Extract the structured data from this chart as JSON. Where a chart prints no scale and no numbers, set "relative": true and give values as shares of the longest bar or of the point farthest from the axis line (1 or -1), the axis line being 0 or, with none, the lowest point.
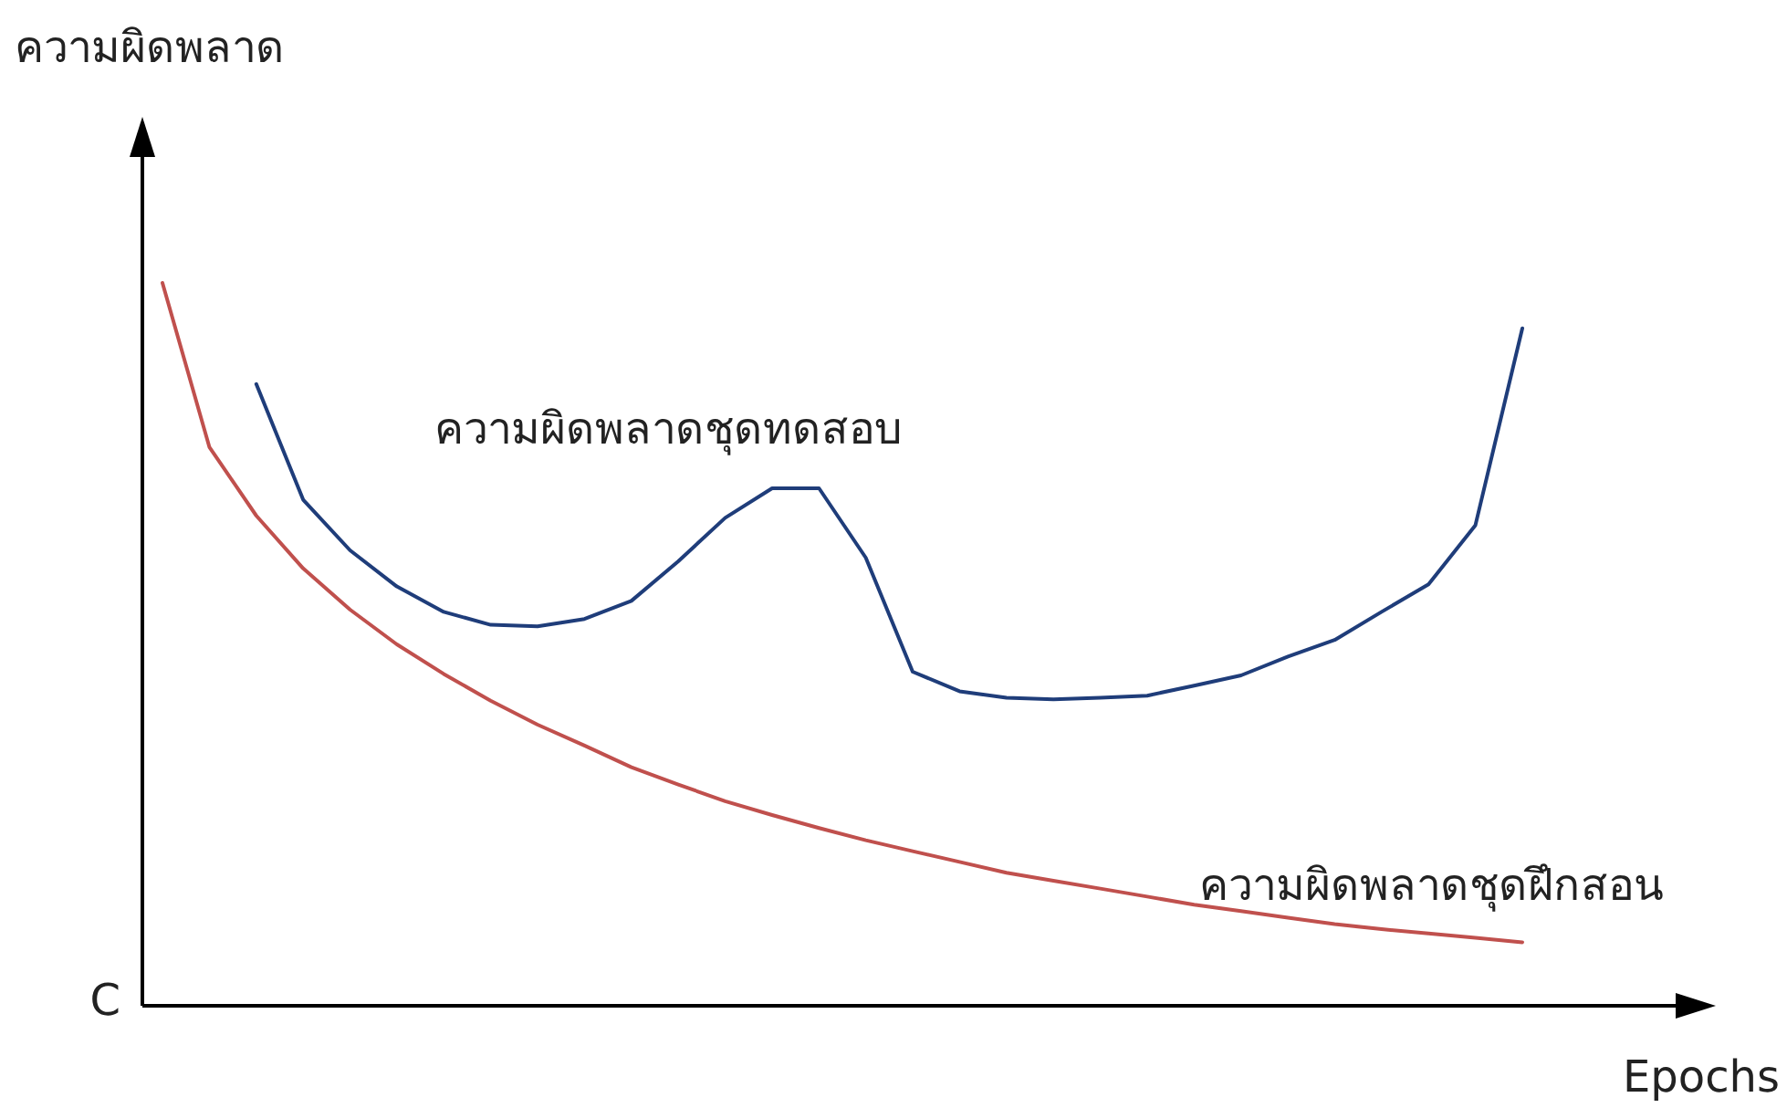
{
  "chart_data": {
    "type": "line",
    "relative": true,
    "xlabel": "Epochs",
    "ylabel": "ความผิดพลาด",
    "annotations": [
      "C"
    ],
    "marker": "none",
    "line_style": "solid",
    "categories": [
      null,
      null,
      null,
      null,
      null,
      null,
      null,
      null,
      null,
      null,
      null,
      null,
      null,
      null,
      null,
      null,
      null,
      null,
      null,
      null,
      null,
      null,
      null,
      null,
      null,
      null,
      null,
      null,
      null,
      null
    ],
    "series": [
      {
        "name": "ความผิดพลาดชุดทดสอบ",
        "color": "#1f3d7a",
        "values": [
          null,
          null,
          0.86,
          0.7,
          0.63,
          0.58,
          0.545,
          0.527,
          0.525,
          0.535,
          0.56,
          0.615,
          0.675,
          0.716,
          0.716,
          0.62,
          0.462,
          0.435,
          0.426,
          0.424,
          0.426,
          0.429,
          0.443,
          0.457,
          0.483,
          0.506,
          0.545,
          0.583,
          0.665,
          0.937
        ]
      },
      {
        "name": "ความผิดพลาดชุดฝึกสอน",
        "color": "#c0504d",
        "values": [
          1.0,
          0.773,
          0.678,
          0.605,
          0.548,
          0.5,
          0.459,
          0.422,
          0.389,
          0.36,
          0.33,
          0.306,
          0.283,
          0.264,
          0.246,
          0.229,
          0.214,
          0.199,
          0.184,
          0.173,
          0.162,
          0.151,
          0.14,
          0.131,
          0.122,
          0.113,
          0.106,
          0.1,
          0.094,
          0.088
        ]
      }
    ]
  }
}
